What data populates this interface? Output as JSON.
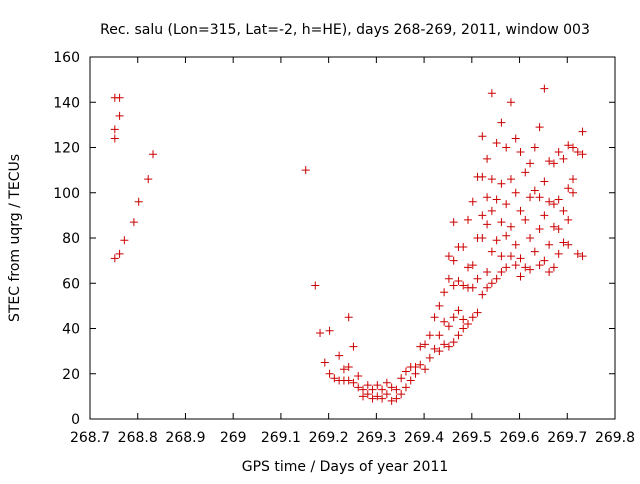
{
  "chart_data": {
    "type": "scatter",
    "title": "Rec. salu (Lon=315, Lat=-2, h=HE), days 268-269, 2011, window 003",
    "xlabel": "GPS time / Days of year 2011",
    "ylabel": "STEC from uqrg / TECUs",
    "xlim": [
      268.7,
      269.8
    ],
    "ylim": [
      0,
      160
    ],
    "x_ticks": [
      268.7,
      268.8,
      268.9,
      269.0,
      269.1,
      269.2,
      269.3,
      269.4,
      269.5,
      269.6,
      269.7,
      269.8
    ],
    "x_tick_labels": [
      "268.7",
      "268.8",
      "268.9",
      "269",
      "269.1",
      "269.2",
      "269.3",
      "269.4",
      "269.5",
      "269.6",
      "269.7",
      "269.8"
    ],
    "y_ticks": [
      0,
      20,
      40,
      60,
      80,
      100,
      120,
      140,
      160
    ],
    "y_tick_labels": [
      "0",
      "20",
      "40",
      "60",
      "80",
      "100",
      "120",
      "140",
      "160"
    ],
    "grid": false,
    "marker": "+",
    "colors": {
      "marker": "#cc0000",
      "axes": "#000000"
    },
    "points": [
      [
        268.752,
        142
      ],
      [
        268.762,
        142
      ],
      [
        268.752,
        128
      ],
      [
        268.752,
        124
      ],
      [
        268.762,
        134
      ],
      [
        268.752,
        71
      ],
      [
        268.762,
        73
      ],
      [
        268.772,
        79
      ],
      [
        268.792,
        87
      ],
      [
        268.802,
        96
      ],
      [
        268.822,
        106
      ],
      [
        268.832,
        117
      ],
      [
        269.152,
        110
      ],
      [
        269.172,
        59
      ],
      [
        269.182,
        38
      ],
      [
        269.192,
        25
      ],
      [
        269.202,
        39
      ],
      [
        269.202,
        20
      ],
      [
        269.212,
        18
      ],
      [
        269.222,
        28
      ],
      [
        269.222,
        17
      ],
      [
        269.232,
        22
      ],
      [
        269.232,
        17
      ],
      [
        269.242,
        45
      ],
      [
        269.242,
        23
      ],
      [
        269.242,
        17
      ],
      [
        269.252,
        32
      ],
      [
        269.252,
        16
      ],
      [
        269.262,
        19
      ],
      [
        269.262,
        14
      ],
      [
        269.272,
        13
      ],
      [
        269.272,
        10
      ],
      [
        269.282,
        15
      ],
      [
        269.282,
        11
      ],
      [
        269.292,
        13
      ],
      [
        269.292,
        9
      ],
      [
        269.302,
        15
      ],
      [
        269.302,
        10
      ],
      [
        269.312,
        13
      ],
      [
        269.312,
        9
      ],
      [
        269.322,
        16
      ],
      [
        269.322,
        11
      ],
      [
        269.332,
        14
      ],
      [
        269.332,
        8
      ],
      [
        269.342,
        13
      ],
      [
        269.342,
        9
      ],
      [
        269.352,
        18
      ],
      [
        269.352,
        11
      ],
      [
        269.362,
        21
      ],
      [
        269.362,
        14
      ],
      [
        269.372,
        23
      ],
      [
        269.372,
        17
      ],
      [
        269.382,
        23
      ],
      [
        269.382,
        20
      ],
      [
        269.392,
        32
      ],
      [
        269.392,
        24
      ],
      [
        269.402,
        33
      ],
      [
        269.402,
        22
      ],
      [
        269.412,
        37
      ],
      [
        269.412,
        27
      ],
      [
        269.422,
        45
      ],
      [
        269.422,
        31
      ],
      [
        269.432,
        50
      ],
      [
        269.432,
        37
      ],
      [
        269.432,
        30
      ],
      [
        269.442,
        56
      ],
      [
        269.442,
        43
      ],
      [
        269.442,
        33
      ],
      [
        269.452,
        72
      ],
      [
        269.452,
        62
      ],
      [
        269.452,
        41
      ],
      [
        269.452,
        32
      ],
      [
        269.462,
        87
      ],
      [
        269.462,
        70
      ],
      [
        269.462,
        59
      ],
      [
        269.462,
        45
      ],
      [
        269.462,
        34
      ],
      [
        269.472,
        76
      ],
      [
        269.472,
        61
      ],
      [
        269.472,
        48
      ],
      [
        269.472,
        37
      ],
      [
        269.482,
        76
      ],
      [
        269.482,
        59
      ],
      [
        269.482,
        44
      ],
      [
        269.482,
        40
      ],
      [
        269.492,
        88
      ],
      [
        269.492,
        67
      ],
      [
        269.492,
        58
      ],
      [
        269.492,
        42
      ],
      [
        269.502,
        96
      ],
      [
        269.502,
        68
      ],
      [
        269.502,
        58
      ],
      [
        269.502,
        45
      ],
      [
        269.512,
        107
      ],
      [
        269.512,
        80
      ],
      [
        269.512,
        62
      ],
      [
        269.512,
        47
      ],
      [
        269.522,
        125
      ],
      [
        269.522,
        107
      ],
      [
        269.522,
        90
      ],
      [
        269.522,
        80
      ],
      [
        269.522,
        55
      ],
      [
        269.532,
        115
      ],
      [
        269.532,
        98
      ],
      [
        269.532,
        86
      ],
      [
        269.532,
        65
      ],
      [
        269.532,
        58
      ],
      [
        269.542,
        144
      ],
      [
        269.542,
        106
      ],
      [
        269.542,
        92
      ],
      [
        269.542,
        74
      ],
      [
        269.542,
        60
      ],
      [
        269.552,
        122
      ],
      [
        269.552,
        97
      ],
      [
        269.552,
        79
      ],
      [
        269.552,
        62
      ],
      [
        269.562,
        131
      ],
      [
        269.562,
        104
      ],
      [
        269.562,
        87
      ],
      [
        269.562,
        72
      ],
      [
        269.562,
        65
      ],
      [
        269.572,
        120
      ],
      [
        269.572,
        95
      ],
      [
        269.572,
        81
      ],
      [
        269.572,
        67
      ],
      [
        269.582,
        140
      ],
      [
        269.582,
        106
      ],
      [
        269.582,
        85
      ],
      [
        269.582,
        72
      ],
      [
        269.592,
        124
      ],
      [
        269.592,
        100
      ],
      [
        269.592,
        77
      ],
      [
        269.592,
        68
      ],
      [
        269.602,
        118
      ],
      [
        269.602,
        92
      ],
      [
        269.602,
        71
      ],
      [
        269.602,
        63
      ],
      [
        269.612,
        109
      ],
      [
        269.612,
        88
      ],
      [
        269.612,
        67
      ],
      [
        269.622,
        113
      ],
      [
        269.622,
        98
      ],
      [
        269.622,
        80
      ],
      [
        269.622,
        66
      ],
      [
        269.632,
        120
      ],
      [
        269.632,
        101
      ],
      [
        269.632,
        74
      ],
      [
        269.642,
        129
      ],
      [
        269.642,
        98
      ],
      [
        269.642,
        84
      ],
      [
        269.642,
        68
      ],
      [
        269.652,
        146
      ],
      [
        269.652,
        105
      ],
      [
        269.652,
        90
      ],
      [
        269.652,
        70
      ],
      [
        269.662,
        114
      ],
      [
        269.662,
        96
      ],
      [
        269.662,
        77
      ],
      [
        269.662,
        65
      ],
      [
        269.672,
        113
      ],
      [
        269.672,
        95
      ],
      [
        269.672,
        85
      ],
      [
        269.672,
        67
      ],
      [
        269.682,
        118
      ],
      [
        269.682,
        97
      ],
      [
        269.682,
        84
      ],
      [
        269.682,
        73
      ],
      [
        269.692,
        115
      ],
      [
        269.692,
        92
      ],
      [
        269.692,
        78
      ],
      [
        269.702,
        121
      ],
      [
        269.702,
        102
      ],
      [
        269.702,
        88
      ],
      [
        269.702,
        77
      ],
      [
        269.712,
        120
      ],
      [
        269.712,
        106
      ],
      [
        269.712,
        100
      ],
      [
        269.722,
        118
      ],
      [
        269.722,
        73
      ],
      [
        269.732,
        127
      ],
      [
        269.732,
        117
      ],
      [
        269.732,
        72
      ]
    ]
  }
}
